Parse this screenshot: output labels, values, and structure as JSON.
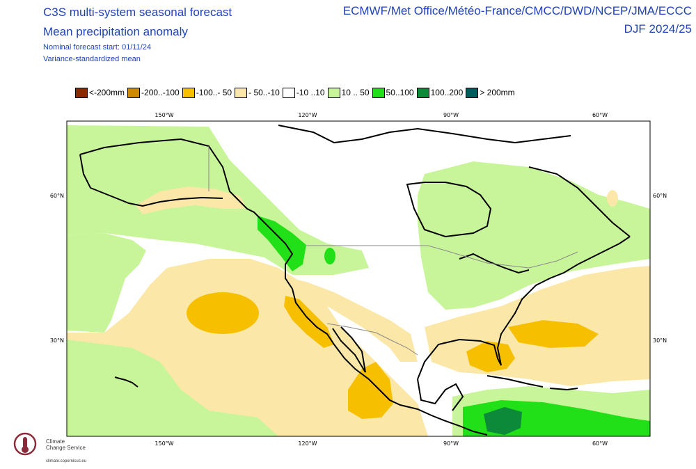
{
  "header": {
    "title_line1": "C3S multi-system seasonal forecast",
    "title_line2": "Mean precipitation anomaly",
    "subtitle_line1": "Nominal forecast start: 01/11/24",
    "subtitle_line2": "Variance-standardized mean",
    "centres": "ECMWF/Met Office/Météo-France/CMCC/DWD/NCEP/JMA/ECCC",
    "season": "DJF 2024/25"
  },
  "legend": [
    {
      "label": "<-200mm",
      "color": "#8b2a00"
    },
    {
      "label": "-200..-100",
      "color": "#cf8a00"
    },
    {
      "label": "-100..- 50",
      "color": "#f6c000"
    },
    {
      "label": "- 50..-10",
      "color": "#fbe8a8"
    },
    {
      "label": "-10 ..10",
      "color": "#ffffff"
    },
    {
      "label": "10 .. 50",
      "color": "#c9f59a"
    },
    {
      "label": "50..100",
      "color": "#22e018"
    },
    {
      "label": "100..200",
      "color": "#0c8a3a"
    },
    {
      "label": "> 200mm",
      "color": "#005c5c"
    }
  ],
  "axes": {
    "lon_top": [
      "150°W",
      "120°W",
      "90°W",
      "60°W"
    ],
    "lon_bottom": [
      "150°W",
      "120°W",
      "90°W",
      "60°W"
    ],
    "lat_left": [
      "60°N",
      "30°N"
    ],
    "lat_right": [
      "60°N",
      "30°N"
    ]
  },
  "logo": {
    "line1": "Climate",
    "line2": "Change Service",
    "url": "climate.copernicus.eu"
  }
}
